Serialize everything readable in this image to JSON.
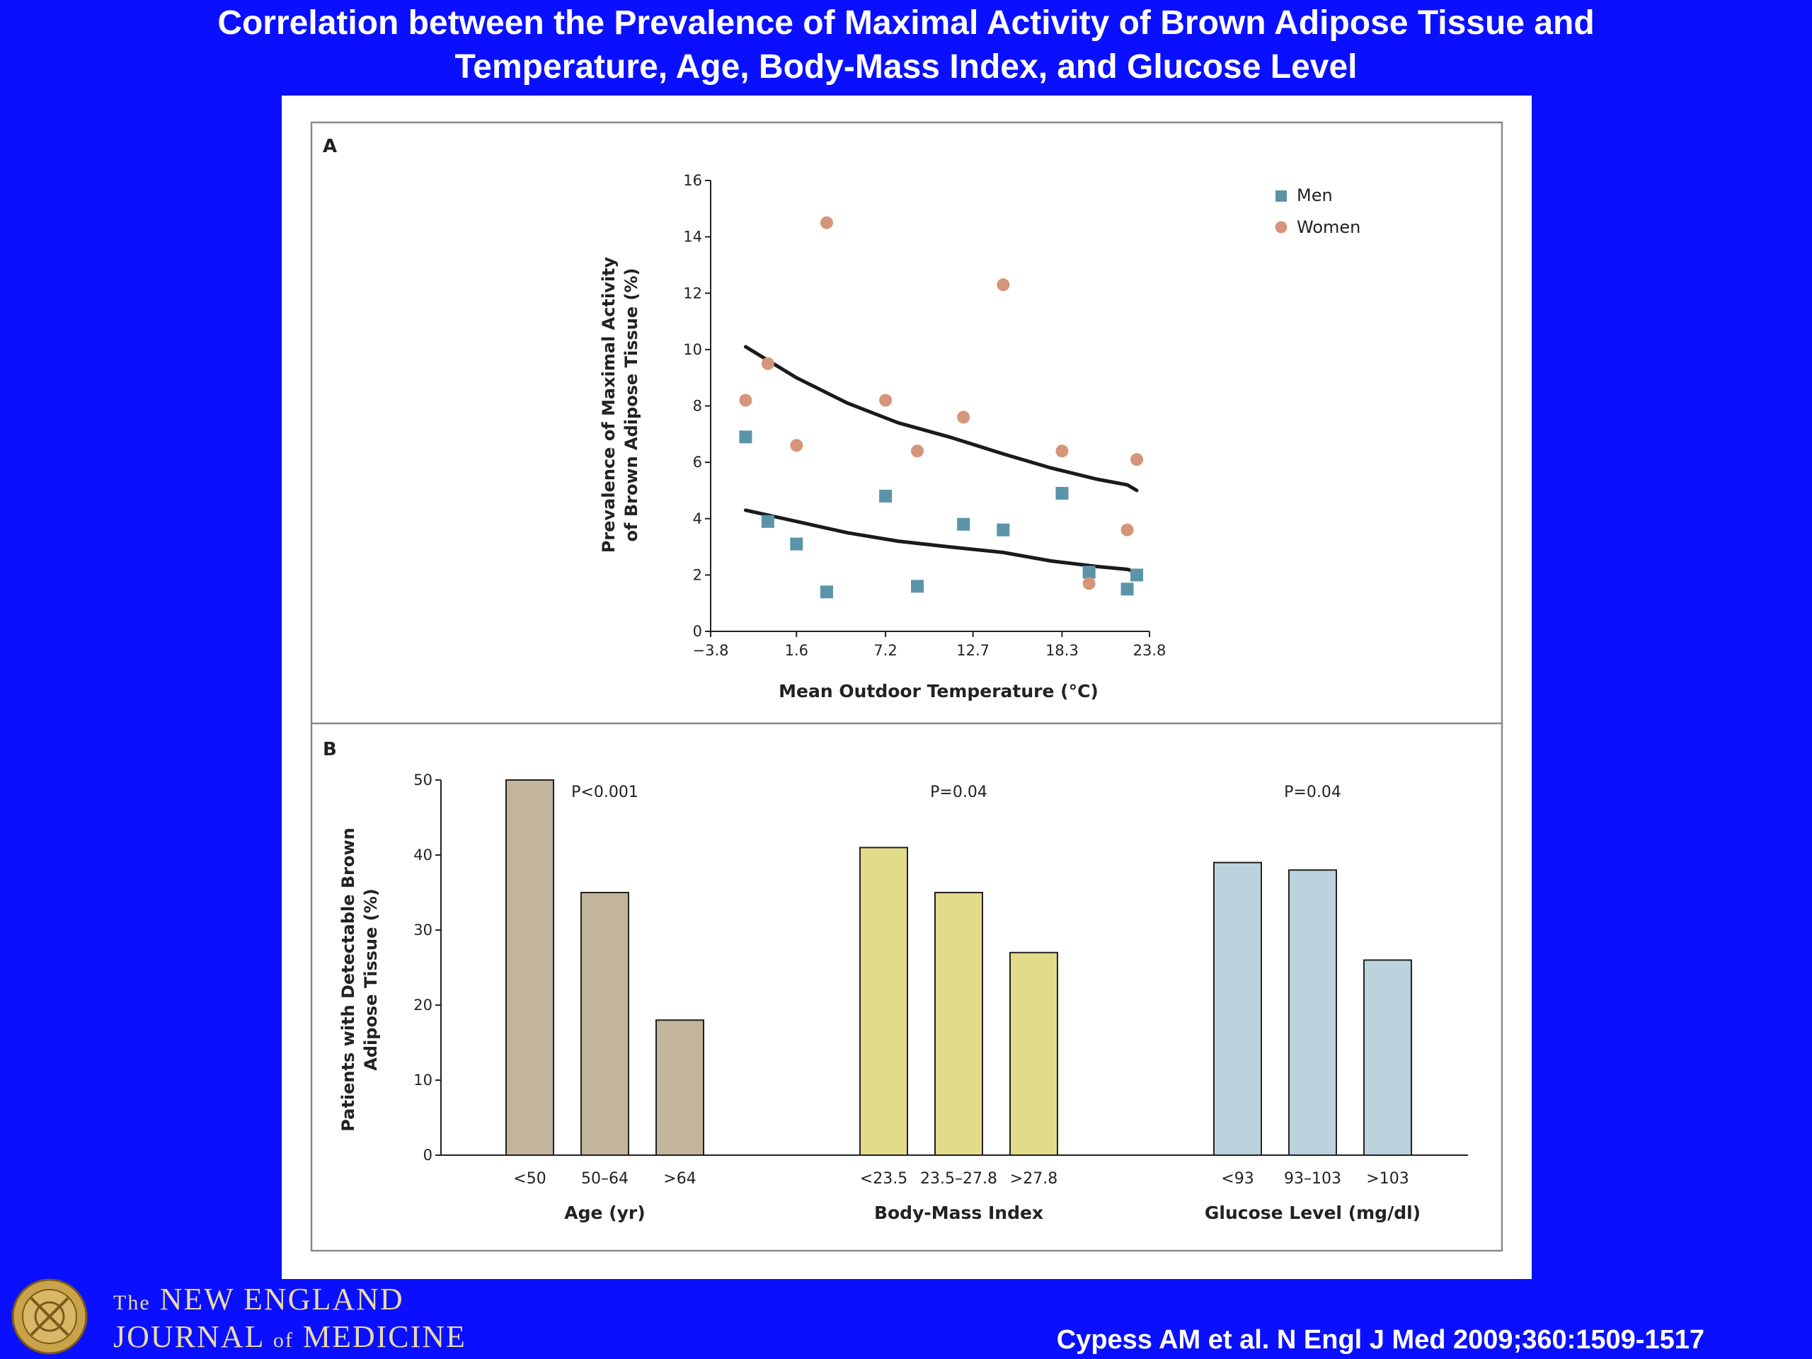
{
  "slide": {
    "title_line1": "Correlation between the Prevalence of Maximal Activity of Brown Adipose Tissue and",
    "title_line2": "Temperature, Age, Body-Mass Index, and Glucose Level",
    "citation": "Cypess AM et al. N Engl J Med 2009;360:1509-1517",
    "journal_line1_prefix": "The",
    "journal_line1": "NEW ENGLAND",
    "journal_line2a": "JOURNAL",
    "journal_line2_of": "of",
    "journal_line2b": "MEDICINE",
    "logo_icon": "nejm-seal-icon"
  },
  "colors": {
    "background": "#0a10ff",
    "men": "#5b94a8",
    "women": "#d4957a",
    "trend": "#1a1a1a",
    "age_bars": "#c2b59b",
    "bmi_bars": "#e2db8a",
    "glucose_bars": "#bcd3dd"
  },
  "chart_data": [
    {
      "type": "scatter",
      "panel_label": "A",
      "xlabel": "Mean Outdoor Temperature (°C)",
      "ylabel_line1": "Prevalence of Maximal Activity",
      "ylabel_line2": "of Brown Adipose Tissue (%)",
      "xlim": [
        -3.8,
        23.8
      ],
      "ylim": [
        0,
        16
      ],
      "xticks": [
        -3.8,
        1.6,
        7.2,
        12.7,
        18.3,
        23.8
      ],
      "xtick_labels": [
        "−3.8",
        "1.6",
        "7.2",
        "12.7",
        "18.3",
        "23.8"
      ],
      "yticks": [
        0,
        2,
        4,
        6,
        8,
        10,
        12,
        14,
        16
      ],
      "legend_position": "top-right",
      "series": [
        {
          "name": "Men",
          "marker": "square",
          "points": [
            [
              -1.6,
              6.9
            ],
            [
              -0.2,
              3.9
            ],
            [
              1.6,
              3.1
            ],
            [
              3.5,
              1.4
            ],
            [
              7.2,
              4.8
            ],
            [
              9.2,
              1.6
            ],
            [
              12.1,
              3.8
            ],
            [
              14.6,
              3.6
            ],
            [
              18.3,
              4.9
            ],
            [
              20.0,
              2.1
            ],
            [
              22.4,
              1.5
            ],
            [
              23.0,
              2.0
            ]
          ]
        },
        {
          "name": "Women",
          "marker": "circle",
          "points": [
            [
              -1.6,
              8.2
            ],
            [
              -0.2,
              9.5
            ],
            [
              1.6,
              6.6
            ],
            [
              3.5,
              14.5
            ],
            [
              7.2,
              8.2
            ],
            [
              9.2,
              6.4
            ],
            [
              12.1,
              7.6
            ],
            [
              14.6,
              12.3
            ],
            [
              18.3,
              6.4
            ],
            [
              20.0,
              1.7
            ],
            [
              22.4,
              3.6
            ],
            [
              23.0,
              6.1
            ]
          ]
        }
      ],
      "trend_lines": [
        {
          "series": "Women",
          "points": [
            [
              -1.6,
              10.1
            ],
            [
              1.6,
              9.0
            ],
            [
              4.8,
              8.1
            ],
            [
              8.0,
              7.4
            ],
            [
              11.2,
              6.9
            ],
            [
              14.6,
              6.3
            ],
            [
              17.6,
              5.8
            ],
            [
              20.5,
              5.4
            ],
            [
              22.4,
              5.2
            ],
            [
              23.0,
              5.0
            ]
          ]
        },
        {
          "series": "Men",
          "points": [
            [
              -1.6,
              4.3
            ],
            [
              1.6,
              3.9
            ],
            [
              4.8,
              3.5
            ],
            [
              8.0,
              3.2
            ],
            [
              11.2,
              3.0
            ],
            [
              14.6,
              2.8
            ],
            [
              17.6,
              2.5
            ],
            [
              20.5,
              2.3
            ],
            [
              22.4,
              2.2
            ],
            [
              23.0,
              2.1
            ]
          ]
        }
      ]
    },
    {
      "type": "bar",
      "panel_label": "B",
      "ylabel_line1": "Patients with Detectable Brown",
      "ylabel_line2": "Adipose Tissue (%)",
      "ylim": [
        0,
        50
      ],
      "yticks": [
        0,
        10,
        20,
        30,
        40,
        50
      ],
      "groups": [
        {
          "name": "Age (yr)",
          "p_value": "P<0.001",
          "color_key": "age_bars",
          "categories": [
            "<50",
            "50–64",
            ">64"
          ],
          "values": [
            50,
            35,
            18
          ]
        },
        {
          "name": "Body-Mass Index",
          "p_value": "P=0.04",
          "color_key": "bmi_bars",
          "categories": [
            "<23.5",
            "23.5–27.8",
            ">27.8"
          ],
          "values": [
            41,
            35,
            27
          ]
        },
        {
          "name": "Glucose Level (mg/dl)",
          "p_value": "P=0.04",
          "color_key": "glucose_bars",
          "categories": [
            "<93",
            "93–103",
            ">103"
          ],
          "values": [
            39,
            38,
            26
          ]
        }
      ]
    }
  ]
}
